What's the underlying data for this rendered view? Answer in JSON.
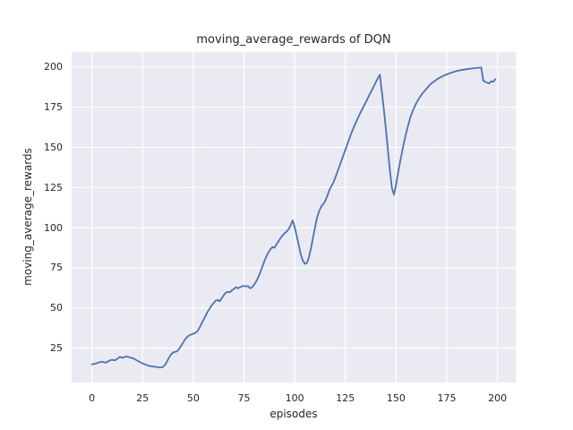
{
  "figure": {
    "title": "moving_average_rewards of DQN",
    "xlabel": "episodes",
    "ylabel": "moving_average_rewards"
  },
  "chart_data": {
    "type": "line",
    "title": "moving_average_rewards of DQN",
    "xlabel": "episodes",
    "ylabel": "moving_average_rewards",
    "grid": true,
    "legend_position": "none",
    "xticks": [
      0,
      25,
      50,
      75,
      100,
      125,
      150,
      175,
      200
    ],
    "yticks": [
      25,
      50,
      75,
      100,
      125,
      150,
      175,
      200
    ],
    "xlim": [
      -10,
      209
    ],
    "ylim": [
      3.6,
      209.4
    ],
    "line_color": "#4C72B0",
    "plot_bg_color": "#EAEAF2",
    "grid_color": "#FFFFFF",
    "figure_bg_color": "#FFFFFF",
    "text_color": "#262626",
    "x": [
      0,
      1,
      2,
      3,
      4,
      5,
      6,
      7,
      8,
      9,
      10,
      11,
      12,
      13,
      14,
      15,
      16,
      17,
      18,
      19,
      20,
      21,
      22,
      23,
      24,
      25,
      26,
      27,
      28,
      29,
      30,
      31,
      32,
      33,
      34,
      35,
      36,
      37,
      38,
      39,
      40,
      41,
      42,
      43,
      44,
      45,
      46,
      47,
      48,
      49,
      50,
      51,
      52,
      53,
      54,
      55,
      56,
      57,
      58,
      59,
      60,
      61,
      62,
      63,
      64,
      65,
      66,
      67,
      68,
      69,
      70,
      71,
      72,
      73,
      74,
      75,
      76,
      77,
      78,
      79,
      80,
      81,
      82,
      83,
      84,
      85,
      86,
      87,
      88,
      89,
      90,
      91,
      92,
      93,
      94,
      95,
      96,
      97,
      98,
      99,
      100,
      101,
      102,
      103,
      104,
      105,
      106,
      107,
      108,
      109,
      110,
      111,
      112,
      113,
      114,
      115,
      116,
      117,
      118,
      119,
      120,
      121,
      122,
      123,
      124,
      125,
      126,
      127,
      128,
      129,
      130,
      131,
      132,
      133,
      134,
      135,
      136,
      137,
      138,
      139,
      140,
      141,
      142,
      143,
      144,
      145,
      146,
      147,
      148,
      149,
      150,
      151,
      152,
      153,
      154,
      155,
      156,
      157,
      158,
      159,
      160,
      161,
      162,
      163,
      164,
      165,
      166,
      167,
      168,
      169,
      170,
      171,
      172,
      173,
      174,
      175,
      176,
      177,
      178,
      179,
      180,
      181,
      182,
      183,
      184,
      185,
      186,
      187,
      188,
      189,
      190,
      191,
      192,
      193,
      194,
      195,
      196,
      197,
      198,
      199
    ],
    "series": [
      {
        "name": "moving_average_rewards",
        "values": [
          15.0,
          15.2,
          15.5,
          15.9,
          16.3,
          16.6,
          16.2,
          16.0,
          16.8,
          17.4,
          17.8,
          17.4,
          17.9,
          18.9,
          19.6,
          19.0,
          19.3,
          19.9,
          19.5,
          19.1,
          18.8,
          18.2,
          17.5,
          16.8,
          16.1,
          15.5,
          15.0,
          14.5,
          14.1,
          13.8,
          13.6,
          13.4,
          13.2,
          13.1,
          13.0,
          13.3,
          14.5,
          16.5,
          19.0,
          21.0,
          22.3,
          22.7,
          23.0,
          24.5,
          26.5,
          28.5,
          30.5,
          32.0,
          33.0,
          33.5,
          34.0,
          34.5,
          35.5,
          37.5,
          40.0,
          42.5,
          45.0,
          47.5,
          49.5,
          51.5,
          53.0,
          54.5,
          55.0,
          54.2,
          56.0,
          58.0,
          59.5,
          60.0,
          59.8,
          61.0,
          61.8,
          62.9,
          62.3,
          62.9,
          63.5,
          63.8,
          63.4,
          63.6,
          62.3,
          62.9,
          64.5,
          66.5,
          69.0,
          72.0,
          75.5,
          79.0,
          82.0,
          84.5,
          86.5,
          88.0,
          87.5,
          89.5,
          91.5,
          93.5,
          95.0,
          96.5,
          97.5,
          99.0,
          101.5,
          104.5,
          100.5,
          95.0,
          89.0,
          83.5,
          79.5,
          77.5,
          78.0,
          81.5,
          87.0,
          93.5,
          100.0,
          106.0,
          110.0,
          113.0,
          114.5,
          116.5,
          119.5,
          123.0,
          125.5,
          128.0,
          131.0,
          134.5,
          138.0,
          141.5,
          145.0,
          148.5,
          152.0,
          155.5,
          159.0,
          162.0,
          165.0,
          167.8,
          170.5,
          173.0,
          175.5,
          178.0,
          180.5,
          183.0,
          185.5,
          188.0,
          190.5,
          193.0,
          195.3,
          184.5,
          173.5,
          161.0,
          148.0,
          135.0,
          124.5,
          120.5,
          127.0,
          134.0,
          141.0,
          147.5,
          153.5,
          159.0,
          164.0,
          168.5,
          172.0,
          175.0,
          177.5,
          179.8,
          181.8,
          183.5,
          185.0,
          186.5,
          188.0,
          189.3,
          190.4,
          191.3,
          192.2,
          193.0,
          193.7,
          194.3,
          194.9,
          195.4,
          195.9,
          196.4,
          196.8,
          197.2,
          197.5,
          197.8,
          198.1,
          198.3,
          198.5,
          198.7,
          198.9,
          199.1,
          199.2,
          199.4,
          199.5,
          199.6,
          199.7,
          191.5,
          190.8,
          190.2,
          189.9,
          191.2,
          190.8,
          192.5
        ]
      }
    ]
  }
}
